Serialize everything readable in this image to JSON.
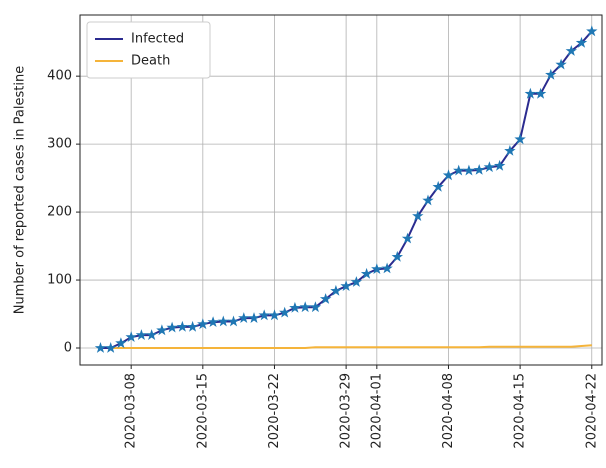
{
  "chart_data": {
    "type": "line",
    "ylabel": "Number of reported cases in Palestine",
    "x": [
      "2020-03-05",
      "2020-03-06",
      "2020-03-07",
      "2020-03-08",
      "2020-03-09",
      "2020-03-10",
      "2020-03-11",
      "2020-03-12",
      "2020-03-13",
      "2020-03-14",
      "2020-03-15",
      "2020-03-16",
      "2020-03-17",
      "2020-03-18",
      "2020-03-19",
      "2020-03-20",
      "2020-03-21",
      "2020-03-22",
      "2020-03-23",
      "2020-03-24",
      "2020-03-25",
      "2020-03-26",
      "2020-03-27",
      "2020-03-28",
      "2020-03-29",
      "2020-03-30",
      "2020-03-31",
      "2020-04-01",
      "2020-04-02",
      "2020-04-03",
      "2020-04-04",
      "2020-04-05",
      "2020-04-06",
      "2020-04-07",
      "2020-04-08",
      "2020-04-09",
      "2020-04-10",
      "2020-04-11",
      "2020-04-12",
      "2020-04-13",
      "2020-04-14",
      "2020-04-15",
      "2020-04-16",
      "2020-04-17",
      "2020-04-18",
      "2020-04-19",
      "2020-04-20",
      "2020-04-21",
      "2020-04-22"
    ],
    "series": [
      {
        "name": "Infected",
        "color": "#2b2b8f",
        "marker": "star",
        "marker_color": "#1f77b4",
        "values": [
          0,
          0,
          7,
          16,
          19,
          19,
          26,
          30,
          31,
          31,
          35,
          38,
          39,
          39,
          44,
          44,
          48,
          48,
          52,
          59,
          60,
          60,
          72,
          84,
          91,
          97,
          109,
          116,
          117,
          134,
          161,
          194,
          217,
          237,
          254,
          261,
          261,
          262,
          266,
          268,
          290,
          307,
          374,
          374,
          402,
          417,
          437,
          449,
          466
        ]
      },
      {
        "name": "Death",
        "color": "#f5b43a",
        "values": [
          0,
          0,
          0,
          0,
          0,
          0,
          0,
          0,
          0,
          0,
          0,
          0,
          0,
          0,
          0,
          0,
          0,
          0,
          0,
          0,
          0,
          1,
          1,
          1,
          1,
          1,
          1,
          1,
          1,
          1,
          1,
          1,
          1,
          1,
          1,
          1,
          1,
          1,
          2,
          2,
          2,
          2,
          2,
          2,
          2,
          2,
          2,
          3,
          4
        ]
      }
    ],
    "xlim": [
      "2020-03-03",
      "2020-04-23"
    ],
    "xticks": [
      "2020-03-08",
      "2020-03-15",
      "2020-03-22",
      "2020-03-29",
      "2020-04-01",
      "2020-04-08",
      "2020-04-15",
      "2020-04-22"
    ],
    "ylim": [
      -25,
      490
    ],
    "yticks": [
      0,
      100,
      200,
      300,
      400
    ],
    "grid": true,
    "legend": "upper left"
  }
}
